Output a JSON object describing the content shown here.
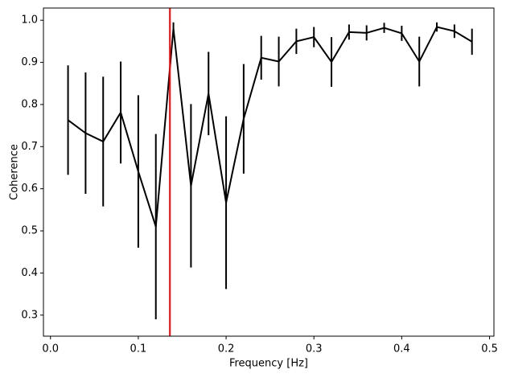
{
  "chart_data": {
    "type": "line",
    "xlabel": "Frequency [Hz]",
    "ylabel": "Coherence",
    "x": [
      0.02,
      0.04,
      0.06,
      0.08,
      0.1,
      0.12,
      0.14,
      0.16,
      0.18,
      0.2,
      0.22,
      0.24,
      0.26,
      0.28,
      0.3,
      0.32,
      0.34,
      0.36,
      0.38,
      0.4,
      0.42,
      0.44,
      0.46,
      0.48
    ],
    "series": [
      {
        "color": "#000000",
        "values": [
          0.763,
          0.732,
          0.712,
          0.781,
          0.641,
          0.51,
          0.98,
          0.607,
          0.826,
          0.567,
          0.766,
          0.911,
          0.902,
          0.95,
          0.96,
          0.901,
          0.972,
          0.97,
          0.982,
          0.969,
          0.902,
          0.984,
          0.974,
          0.949
        ],
        "errors": [
          0.13,
          0.144,
          0.154,
          0.121,
          0.181,
          0.22,
          0.015,
          0.194,
          0.099,
          0.205,
          0.13,
          0.052,
          0.059,
          0.03,
          0.024,
          0.059,
          0.018,
          0.018,
          0.012,
          0.018,
          0.059,
          0.011,
          0.016,
          0.031
        ]
      }
    ],
    "vline": {
      "x": 0.136,
      "color": "#ff0000"
    },
    "xlim": [
      -0.008,
      0.505
    ],
    "xticks": [
      {
        "value": 0,
        "label": "0.0"
      },
      0.1,
      0.2,
      0.3,
      0.4,
      0.5
    ],
    "ylim": [
      0.25,
      1.029
    ],
    "yticks": [
      0.3,
      0.4,
      0.5,
      0.6,
      0.7,
      0.8,
      0.9,
      {
        "value": 1,
        "label": "1.0"
      }
    ]
  }
}
